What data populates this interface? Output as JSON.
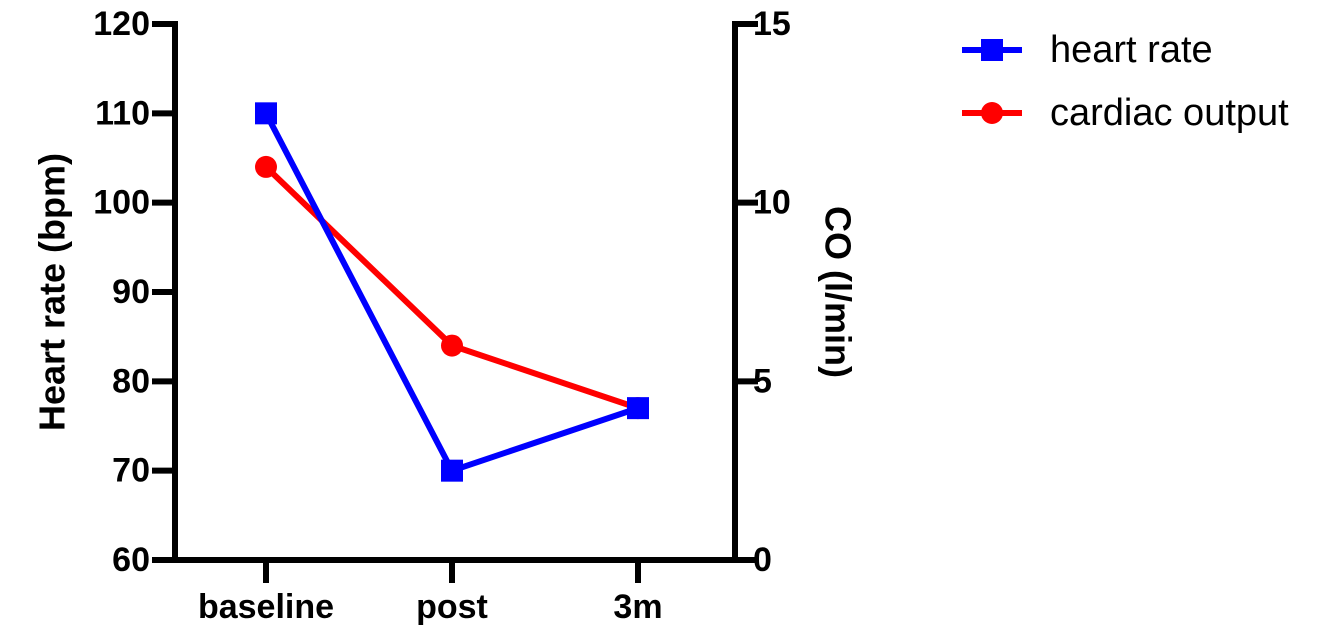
{
  "chart_data": {
    "type": "line",
    "categories": [
      "baseline",
      "post",
      "3m"
    ],
    "left_axis": {
      "label": "Heart rate (bpm)",
      "ylim": [
        60,
        120
      ],
      "ticks": [
        "120",
        "110",
        "100",
        "90",
        "80",
        "70",
        "60"
      ],
      "tick_values": [
        120,
        110,
        100,
        90,
        80,
        70,
        60
      ]
    },
    "right_axis": {
      "label": "CO (l/min)",
      "ylim": [
        0,
        15
      ],
      "ticks": [
        "15",
        "10",
        "5",
        "0"
      ],
      "tick_values": [
        15,
        10,
        5,
        0
      ]
    },
    "series": [
      {
        "name": "heart rate",
        "axis": "left",
        "values": [
          110,
          70,
          77
        ],
        "color": "#0000ff",
        "marker": "square"
      },
      {
        "name": "cardiac output",
        "axis": "right",
        "values": [
          11,
          6,
          4.25
        ],
        "color": "#ff0000",
        "marker": "circle"
      }
    ],
    "legend_position": "top-right",
    "grid": false
  }
}
